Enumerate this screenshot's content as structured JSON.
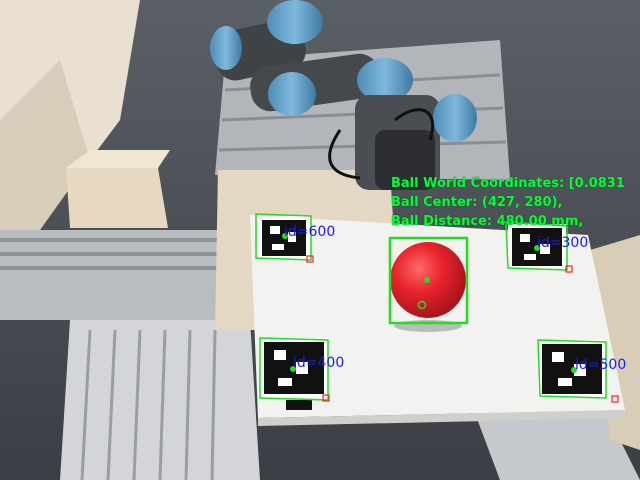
{
  "overlay": {
    "world_coordinates": "Ball World Coordinates: [0.0831",
    "ball_center": "Ball Center: (427, 280),",
    "ball_distance": "Ball Distance: 480.00 mm,"
  },
  "markers": {
    "m600": "id=600",
    "m300": "id=300",
    "m400": "id=400",
    "m500": "id=500"
  },
  "colors": {
    "detection_box": "#22dd22",
    "marker_label": "#1a1aff",
    "ball": "#e8232c",
    "robot_blue": "#5fa0c8"
  }
}
